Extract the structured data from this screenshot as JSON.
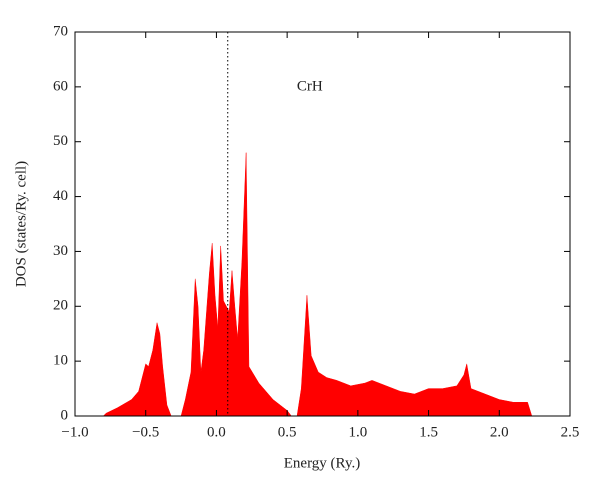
{
  "chart_data": {
    "type": "area",
    "xlabel": "Energy (Ry.)",
    "ylabel": "DOS (states/Ry. cell)",
    "annotation": {
      "text": "CrH",
      "x": 0.66,
      "y": 60
    },
    "vline": {
      "x": 0.08,
      "style": "dotted"
    },
    "color": "#ff0000",
    "x": [
      -0.95,
      -0.8,
      -0.78,
      -0.7,
      -0.6,
      -0.55,
      -0.5,
      -0.48,
      -0.45,
      -0.42,
      -0.4,
      -0.38,
      -0.35,
      -0.32,
      -0.25,
      -0.22,
      -0.18,
      -0.15,
      -0.13,
      -0.11,
      -0.09,
      -0.05,
      -0.03,
      -0.01,
      0.01,
      0.03,
      0.05,
      0.07,
      0.09,
      0.11,
      0.13,
      0.15,
      0.18,
      0.21,
      0.23,
      0.3,
      0.4,
      0.5,
      0.53,
      0.57,
      0.6,
      0.64,
      0.67,
      0.72,
      0.78,
      0.85,
      0.95,
      1.05,
      1.1,
      1.15,
      1.3,
      1.4,
      1.5,
      1.6,
      1.7,
      1.75,
      1.77,
      1.8,
      1.9,
      2.0,
      2.1,
      2.2,
      2.23,
      2.25
    ],
    "values": [
      0,
      0,
      0.5,
      1.5,
      3,
      4.5,
      9.5,
      9,
      12,
      17,
      15,
      9,
      2,
      0,
      0,
      3,
      8,
      25,
      20,
      8,
      12,
      26,
      31.5,
      22,
      16,
      31,
      21,
      20,
      19,
      26.5,
      20,
      14,
      28,
      48,
      9,
      6,
      3,
      1,
      0,
      0,
      5,
      22,
      11,
      8,
      7,
      6.5,
      5.5,
      6,
      6.5,
      6,
      4.5,
      4,
      5,
      5,
      5.5,
      7.5,
      9.5,
      5,
      4,
      3,
      2.5,
      2.5,
      0,
      0
    ],
    "xlim": [
      -1,
      2.5
    ],
    "xticks": [
      {
        "value": -1,
        "label": "−1.0"
      },
      {
        "value": -0.5,
        "label": "−0.5"
      },
      {
        "value": 0,
        "label": "0.0"
      },
      0.5,
      {
        "value": 1,
        "label": "1.0"
      },
      1.5,
      {
        "value": 2,
        "label": "2.0"
      },
      2.5
    ],
    "ylim": [
      0,
      70
    ],
    "yticks": [
      0,
      10,
      20,
      30,
      40,
      50,
      60,
      70
    ]
  }
}
